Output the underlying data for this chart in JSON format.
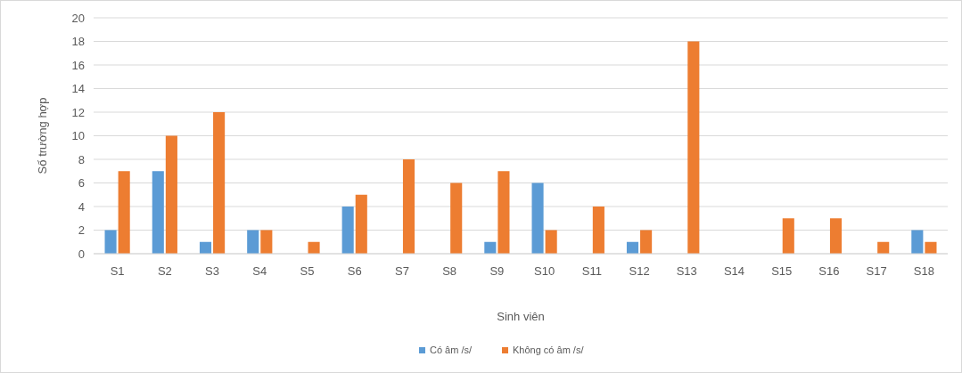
{
  "chart_data": {
    "type": "bar",
    "xlabel": "Sinh viên",
    "ylabel": "Số trường hợp",
    "categories": [
      "S1",
      "S2",
      "S3",
      "S4",
      "S5",
      "S6",
      "S7",
      "S8",
      "S9",
      "S10",
      "S11",
      "S12",
      "S13",
      "S14",
      "S15",
      "S16",
      "S17",
      "S18"
    ],
    "series": [
      {
        "name": "Có âm /s/",
        "color": "#5b9bd5",
        "values": [
          2,
          7,
          1,
          2,
          0,
          4,
          0,
          0,
          1,
          6,
          0,
          1,
          0,
          0,
          0,
          0,
          0,
          2
        ]
      },
      {
        "name": "Không có âm /s/",
        "color": "#ed7d31",
        "values": [
          7,
          10,
          12,
          2,
          1,
          5,
          8,
          6,
          7,
          2,
          4,
          2,
          18,
          0,
          3,
          3,
          1,
          1
        ]
      }
    ],
    "ylim": [
      0,
      20
    ],
    "yticks": [
      0,
      2,
      4,
      6,
      8,
      10,
      12,
      14,
      16,
      18,
      20
    ],
    "grid": "y",
    "legend": "bottom"
  }
}
